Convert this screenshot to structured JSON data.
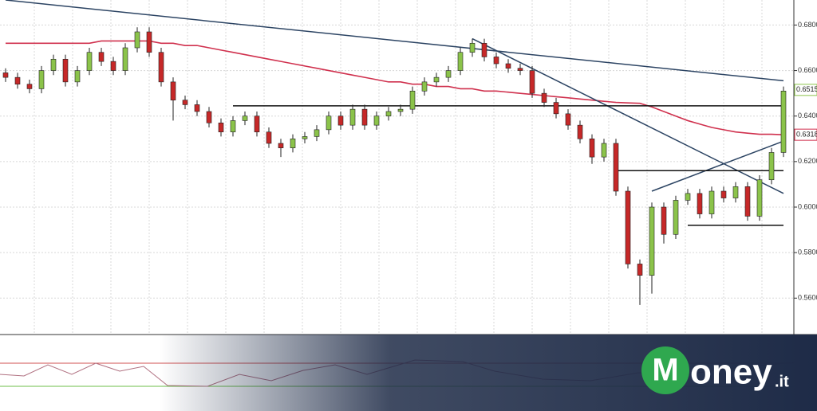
{
  "chart_data": {
    "type": "candlestick",
    "categories": [
      null,
      null,
      null,
      null,
      null,
      null,
      null,
      null,
      null,
      null,
      null,
      null,
      null,
      null,
      null,
      null,
      null,
      null,
      null,
      null,
      null,
      null,
      null,
      null,
      null,
      null,
      null,
      null,
      null,
      null,
      null,
      null,
      null,
      null,
      null,
      null,
      null,
      null,
      null,
      null,
      null,
      null,
      null,
      null,
      null,
      null,
      null,
      null,
      null,
      null,
      null,
      null,
      null,
      null,
      null,
      null,
      null,
      null,
      null,
      null,
      null,
      null,
      null,
      null,
      null,
      null
    ],
    "open": [
      0.659,
      0.657,
      0.654,
      0.652,
      0.66,
      0.665,
      0.655,
      0.66,
      0.668,
      0.664,
      0.66,
      0.67,
      0.677,
      0.668,
      0.655,
      0.647,
      0.645,
      0.642,
      0.637,
      0.633,
      0.638,
      0.64,
      0.633,
      0.628,
      0.626,
      0.63,
      0.631,
      0.634,
      0.64,
      0.636,
      0.643,
      0.636,
      0.64,
      0.642,
      0.643,
      0.651,
      0.655,
      0.657,
      0.66,
      0.668,
      0.672,
      0.666,
      0.663,
      0.661,
      0.66,
      0.65,
      0.646,
      0.641,
      0.636,
      0.63,
      0.622,
      0.628,
      0.607,
      0.575,
      0.57,
      0.6,
      0.588,
      0.603,
      0.606,
      0.597,
      0.607,
      0.604,
      0.609,
      0.596,
      0.612,
      0.624
    ],
    "high": [
      0.661,
      0.659,
      0.656,
      0.662,
      0.667,
      0.667,
      0.662,
      0.67,
      0.67,
      0.666,
      0.672,
      0.679,
      0.679,
      0.67,
      0.657,
      0.649,
      0.647,
      0.644,
      0.639,
      0.64,
      0.642,
      0.642,
      0.635,
      0.63,
      0.632,
      0.633,
      0.636,
      0.642,
      0.642,
      0.645,
      0.645,
      0.642,
      0.644,
      0.645,
      0.653,
      0.657,
      0.659,
      0.662,
      0.67,
      0.674,
      0.674,
      0.668,
      0.665,
      0.663,
      0.662,
      0.652,
      0.648,
      0.643,
      0.638,
      0.632,
      0.63,
      0.63,
      0.609,
      0.577,
      0.602,
      0.602,
      0.605,
      0.608,
      0.608,
      0.609,
      0.609,
      0.611,
      0.611,
      0.614,
      0.626,
      0.653
    ],
    "low": [
      0.655,
      0.652,
      0.65,
      0.65,
      0.658,
      0.653,
      0.653,
      0.658,
      0.662,
      0.658,
      0.658,
      0.668,
      0.666,
      0.653,
      0.638,
      0.643,
      0.64,
      0.635,
      0.631,
      0.631,
      0.636,
      0.631,
      0.626,
      0.622,
      0.624,
      0.628,
      0.629,
      0.632,
      0.634,
      0.634,
      0.634,
      0.634,
      0.638,
      0.64,
      0.641,
      0.649,
      0.653,
      0.655,
      0.658,
      0.666,
      0.664,
      0.661,
      0.659,
      0.658,
      0.648,
      0.644,
      0.639,
      0.634,
      0.628,
      0.619,
      0.62,
      0.605,
      0.573,
      0.557,
      0.562,
      0.584,
      0.586,
      0.601,
      0.595,
      0.595,
      0.602,
      0.602,
      0.594,
      0.594,
      0.61,
      0.622
    ],
    "close": [
      0.657,
      0.654,
      0.652,
      0.66,
      0.665,
      0.655,
      0.66,
      0.668,
      0.664,
      0.66,
      0.67,
      0.677,
      0.668,
      0.655,
      0.647,
      0.645,
      0.642,
      0.637,
      0.633,
      0.638,
      0.64,
      0.633,
      0.628,
      0.626,
      0.63,
      0.631,
      0.634,
      0.64,
      0.636,
      0.643,
      0.636,
      0.64,
      0.642,
      0.643,
      0.651,
      0.655,
      0.657,
      0.66,
      0.668,
      0.672,
      0.666,
      0.663,
      0.661,
      0.66,
      0.65,
      0.646,
      0.641,
      0.636,
      0.63,
      0.622,
      0.628,
      0.607,
      0.575,
      0.57,
      0.6,
      0.588,
      0.603,
      0.606,
      0.597,
      0.607,
      0.604,
      0.609,
      0.596,
      0.612,
      0.624,
      0.651
    ],
    "up_color": "#8bc34a",
    "down_color": "#c62828",
    "series": [
      {
        "color": "#d0314e",
        "values": [
          0.672,
          0.672,
          0.672,
          0.672,
          0.672,
          0.672,
          0.672,
          0.672,
          0.673,
          0.673,
          0.673,
          0.673,
          0.673,
          0.672,
          0.672,
          0.671,
          0.671,
          0.67,
          0.669,
          0.668,
          0.667,
          0.666,
          0.665,
          0.664,
          0.663,
          0.662,
          0.661,
          0.66,
          0.659,
          0.658,
          0.657,
          0.656,
          0.655,
          0.655,
          0.654,
          0.654,
          0.653,
          0.653,
          0.652,
          0.652,
          0.651,
          0.651,
          0.6505,
          0.65,
          0.6495,
          0.649,
          0.6485,
          0.648,
          0.6475,
          0.647,
          0.6465,
          0.646,
          0.6458,
          0.6456,
          0.644,
          0.642,
          0.64,
          0.638,
          0.6365,
          0.635,
          0.634,
          0.633,
          0.6325,
          0.632,
          0.632,
          0.6318
        ]
      }
    ],
    "trendlines": [
      {
        "color": "#2c4463",
        "from": [
          0,
          0.691
        ],
        "to": [
          65,
          0.6555
        ]
      },
      {
        "color": "#2c4463",
        "from": [
          39,
          0.674
        ],
        "to": [
          65,
          0.606
        ]
      },
      {
        "color": "#2c4463",
        "from": [
          54,
          0.607
        ],
        "to": [
          65,
          0.629
        ]
      },
      {
        "color": "#111111",
        "from": [
          19,
          0.6445
        ],
        "to": [
          65,
          0.6445
        ]
      },
      {
        "color": "#111111",
        "from": [
          51,
          0.616
        ],
        "to": [
          65,
          0.616
        ]
      },
      {
        "color": "#111111",
        "from": [
          57,
          0.592
        ],
        "to": [
          65,
          0.592
        ]
      }
    ],
    "price_tags": [
      {
        "value": 0.6515,
        "label": "0.6515",
        "color": "#8bc34a"
      },
      {
        "value": 0.6318,
        "label": "0.6318",
        "color": "#d0314e"
      }
    ],
    "ylim": [
      0.544,
      0.691
    ],
    "yticks": [
      {
        "value": 0.56,
        "label": "0.5600"
      },
      {
        "value": 0.58,
        "label": "0.5800"
      },
      {
        "value": 0.6,
        "label": "0.6000"
      },
      {
        "value": 0.62,
        "label": "0.6200"
      },
      {
        "value": 0.64,
        "label": "0.6400"
      },
      {
        "value": 0.66,
        "label": "0.6600"
      },
      {
        "value": 0.68,
        "label": "0.6800"
      }
    ],
    "grid": true
  },
  "logo": {
    "initial": "M",
    "text": "oney",
    "suffix": ".it"
  }
}
